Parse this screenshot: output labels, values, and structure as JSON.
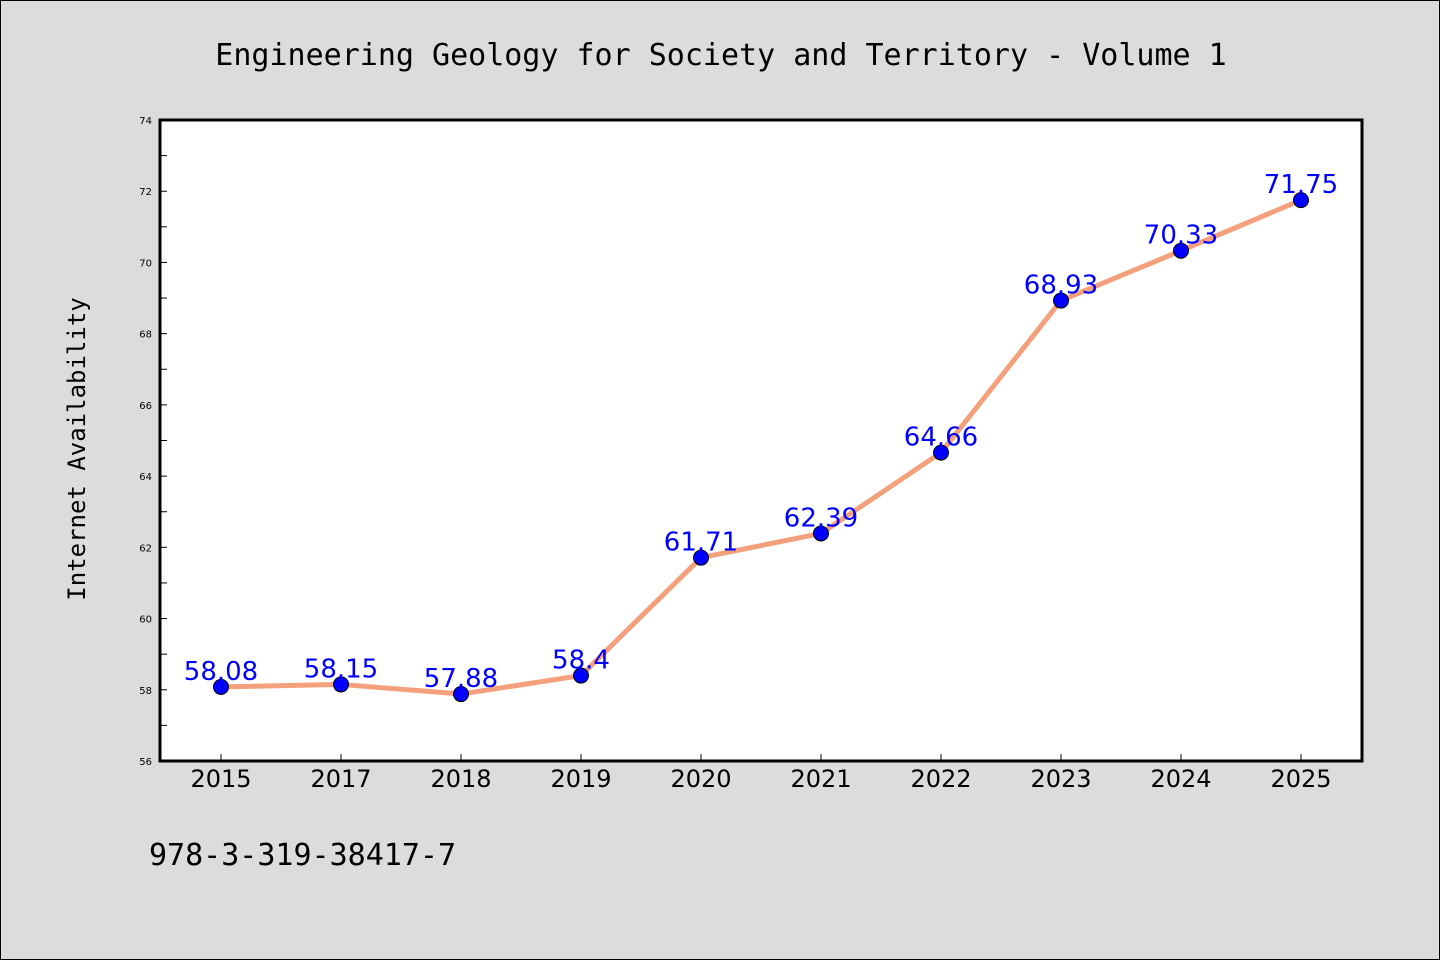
{
  "chart_data": {
    "type": "line",
    "title": "Engineering Geology for Society and Territory - Volume 1",
    "xlabel": "",
    "ylabel": "Internet Availability",
    "categories": [
      "2015",
      "2017",
      "2018",
      "2019",
      "2020",
      "2021",
      "2022",
      "2023",
      "2024",
      "2025"
    ],
    "values": [
      58.08,
      58.15,
      57.88,
      58.4,
      61.71,
      62.39,
      64.66,
      68.93,
      70.33,
      71.75
    ],
    "data_labels": [
      "58.08",
      "58.15",
      "57.88",
      "58.4",
      "61.71",
      "62.39",
      "64.66",
      "68.93",
      "70.33",
      "71.75"
    ],
    "ylim": [
      56,
      74
    ],
    "yticks": [
      56,
      58,
      60,
      62,
      64,
      66,
      68,
      70,
      72,
      74
    ],
    "grid": false,
    "legend": "none",
    "line_color": "#f4a07c",
    "marker_color": "#0000ff",
    "label_color": "#0000ff",
    "background_color": "#dcdcdc",
    "plot_background": "#ffffff"
  },
  "footnote": "978-3-319-38417-7"
}
